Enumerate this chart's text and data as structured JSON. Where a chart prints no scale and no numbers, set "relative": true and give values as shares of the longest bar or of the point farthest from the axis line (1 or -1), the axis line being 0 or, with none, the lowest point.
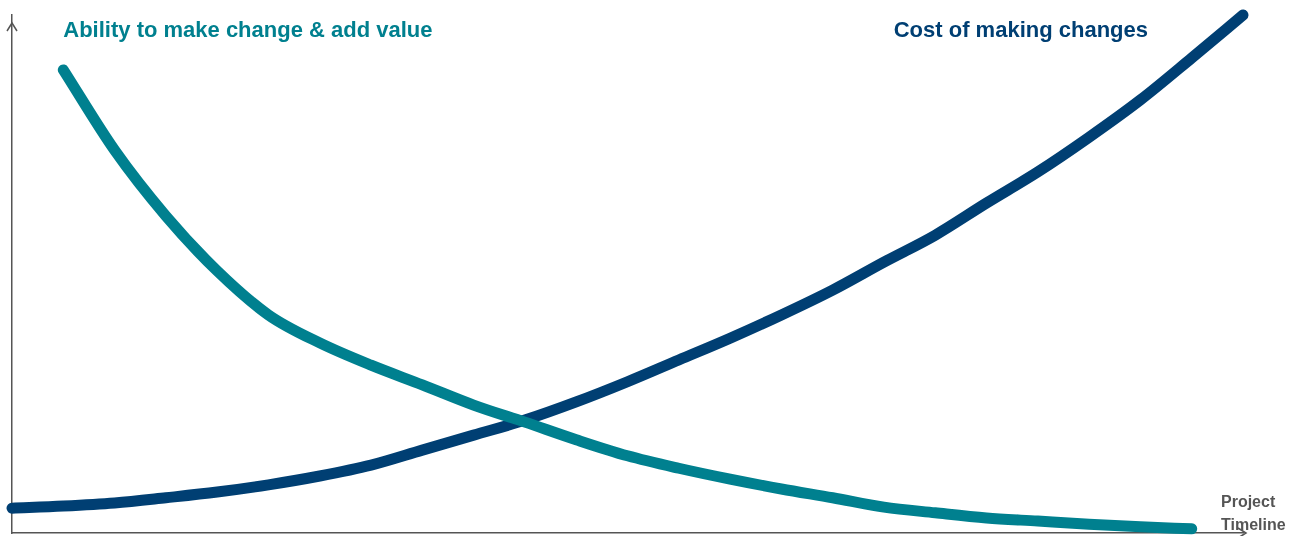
{
  "chart_data": {
    "type": "line",
    "relative": true,
    "xlabel": "Project Timeline",
    "marker": "none",
    "line_style": "solid",
    "categories": [
      null,
      null,
      null,
      null,
      null,
      null,
      null,
      null,
      null,
      null,
      null,
      null,
      null,
      null,
      null,
      null,
      null,
      null,
      null,
      null,
      null,
      null,
      null,
      null,
      null
    ],
    "series": [
      {
        "name": "Ability to make change & add value",
        "color": "#00808f",
        "values": [
          null,
          0.894,
          0.739,
          0.612,
          0.506,
          0.421,
          0.367,
          0.324,
          0.286,
          0.247,
          0.214,
          0.18,
          0.149,
          0.125,
          0.104,
          0.085,
          0.068,
          0.05,
          0.039,
          0.029,
          0.023,
          0.017,
          0.012,
          0.008,
          null
        ]
      },
      {
        "name": "Cost of making changes",
        "color": "#003f73",
        "values": [
          0.048,
          0.052,
          0.058,
          0.068,
          0.079,
          0.093,
          0.11,
          0.131,
          0.16,
          0.189,
          0.218,
          0.253,
          0.292,
          0.334,
          0.376,
          0.421,
          0.469,
          0.523,
          0.575,
          0.637,
          0.697,
          0.764,
          0.836,
          0.917,
          1.0
        ]
      }
    ]
  }
}
